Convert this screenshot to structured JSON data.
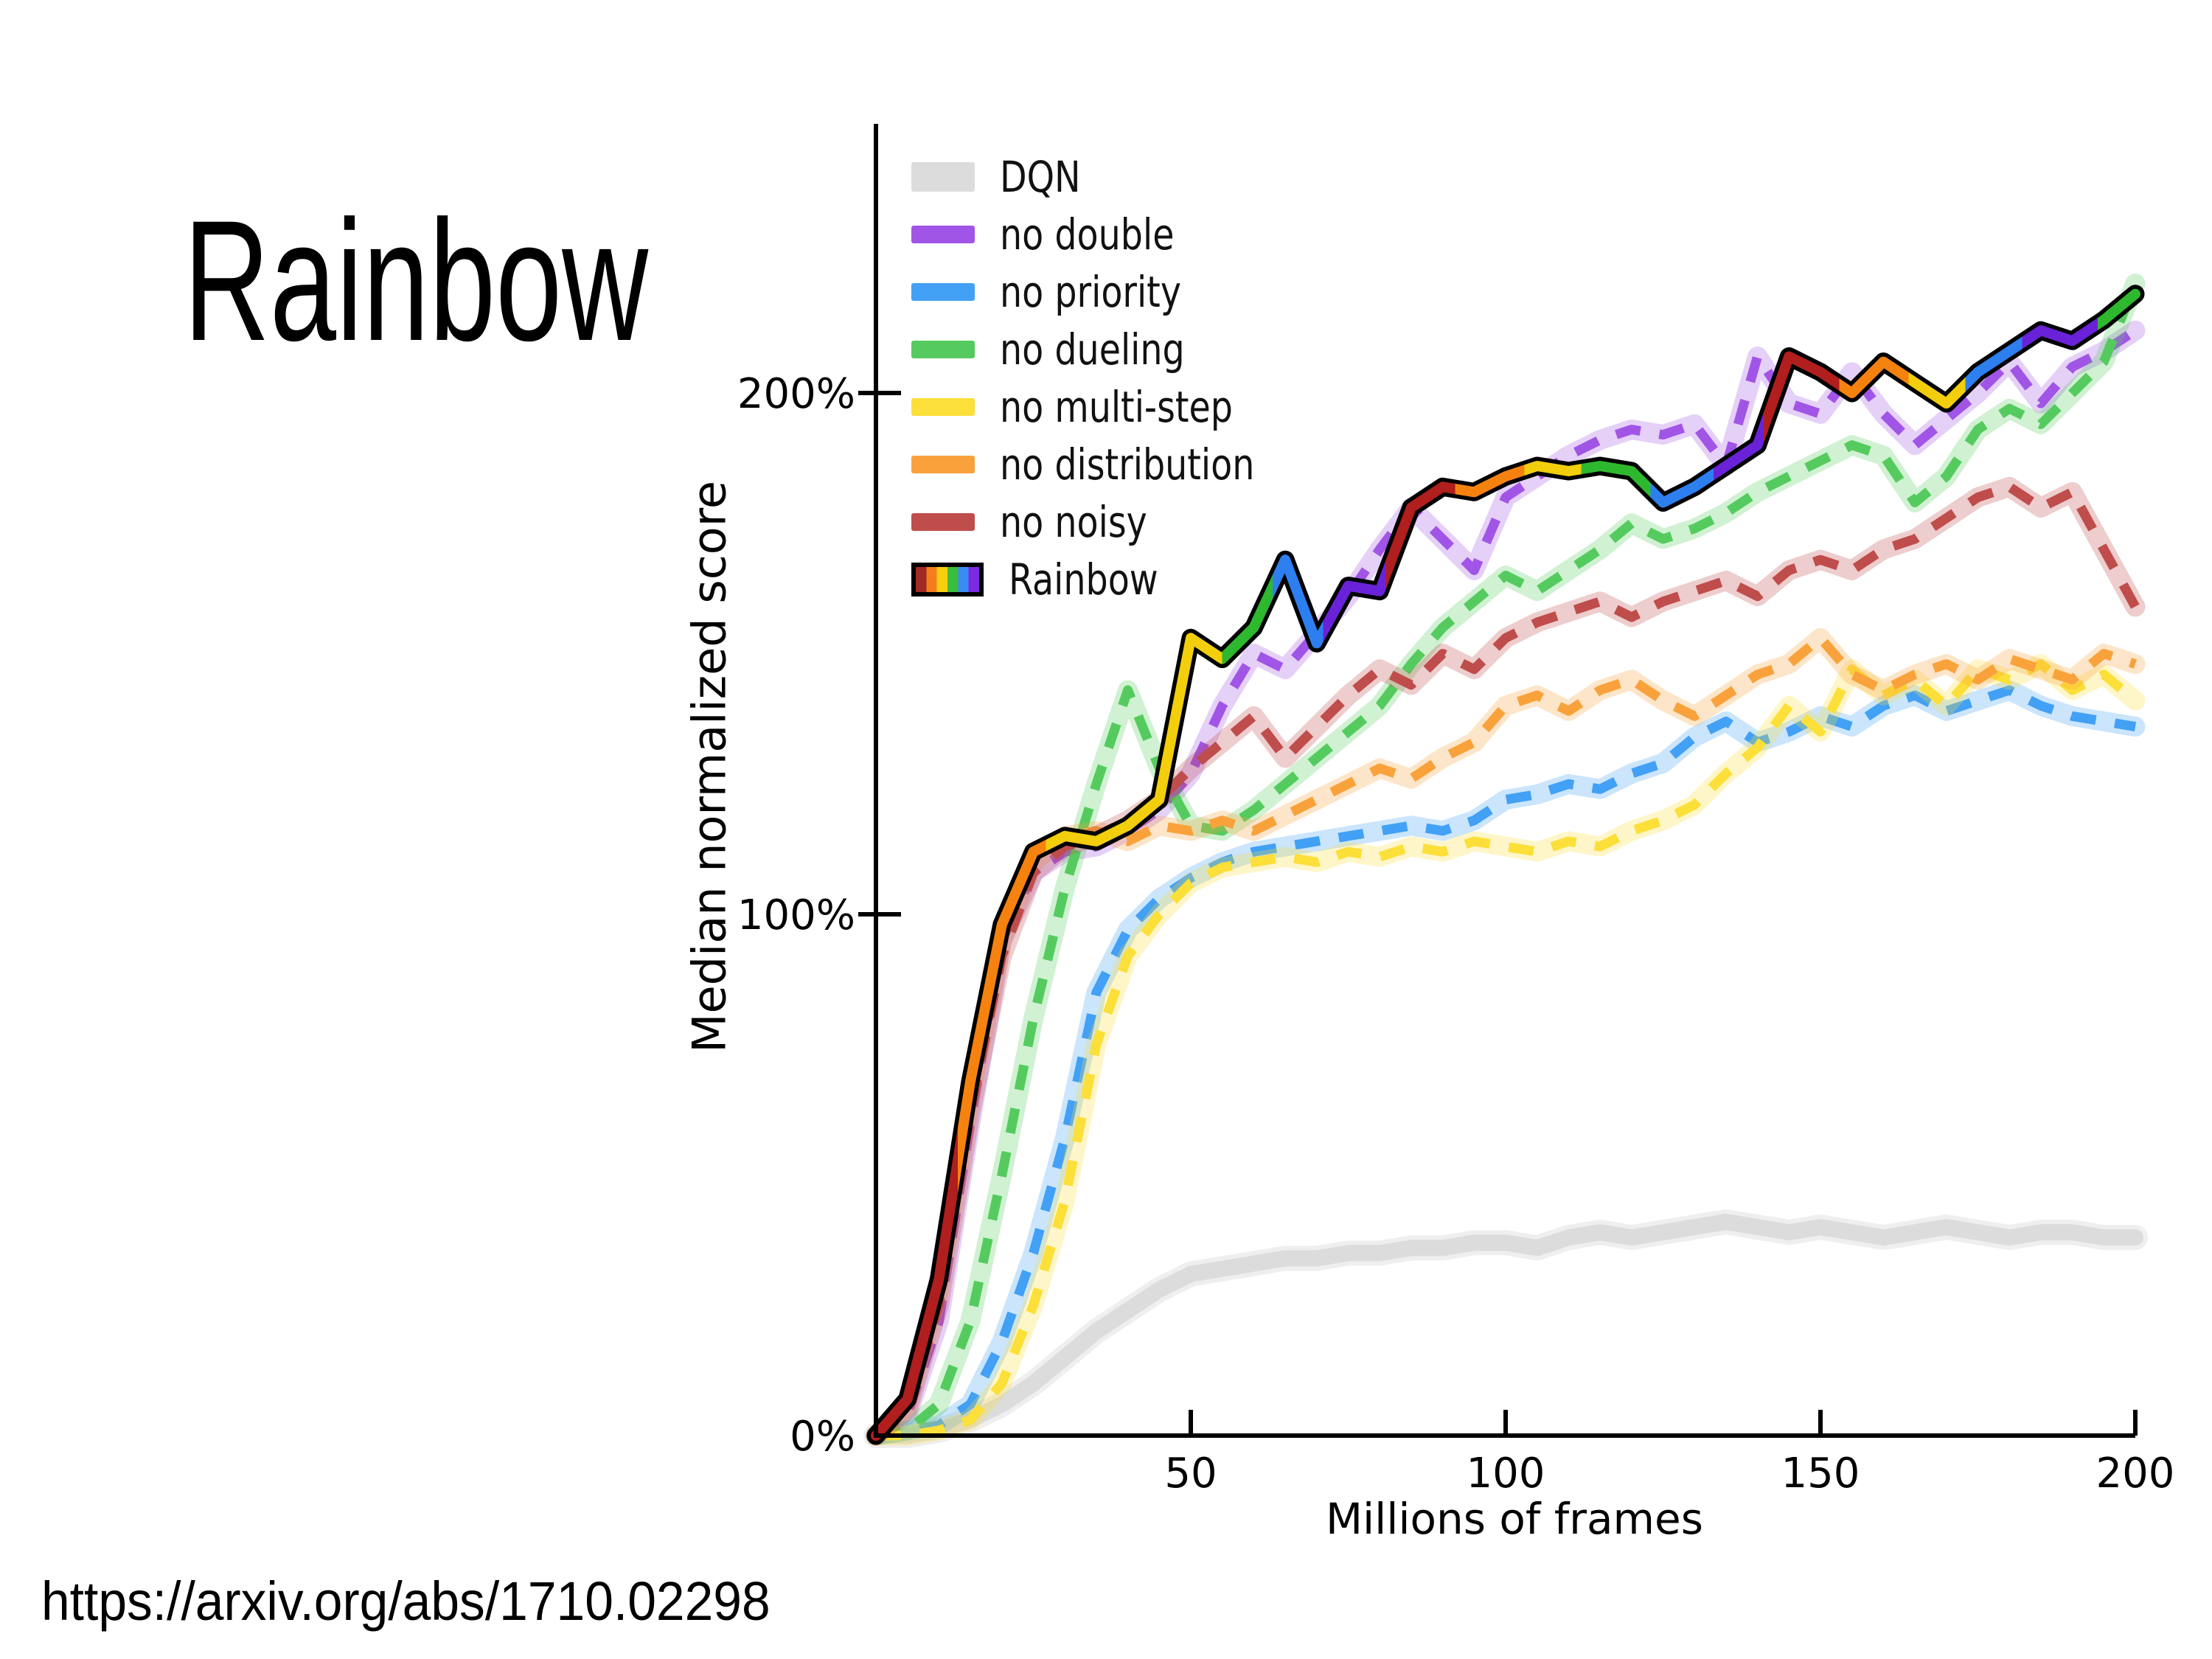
{
  "slide": {
    "title": "Rainbow",
    "url": "https://arxiv.org/abs/1710.02298",
    "background": "#ffffff"
  },
  "chart_data": {
    "type": "line",
    "title": "",
    "xlabel": "Millions of frames",
    "ylabel": "Median normalized score",
    "xlim": [
      0,
      200
    ],
    "ylim": [
      0,
      251
    ],
    "grid": false,
    "legend_position": "top-left",
    "axis_color": "#000000",
    "x_tick_labels": [
      "50",
      "100",
      "150",
      "200"
    ],
    "x_tick_values": [
      50,
      100,
      150,
      200
    ],
    "y_tick_labels": [
      "0%",
      "100%",
      "200%"
    ],
    "y_tick_values": [
      0,
      100,
      200
    ],
    "x": [
      0,
      5,
      10,
      15,
      20,
      25,
      30,
      35,
      40,
      45,
      50,
      55,
      60,
      65,
      70,
      75,
      80,
      85,
      90,
      95,
      100,
      105,
      110,
      115,
      120,
      125,
      130,
      135,
      140,
      145,
      150,
      155,
      160,
      165,
      170,
      175,
      180,
      185,
      190,
      195,
      200
    ],
    "series": [
      {
        "name": "DQN",
        "label": "DQN",
        "color": "#dcdcdc",
        "style": "thick",
        "values": [
          0,
          0,
          1,
          3,
          6,
          10,
          15,
          20,
          24,
          28,
          31,
          32,
          33,
          34,
          34,
          35,
          35,
          36,
          36,
          37,
          37,
          36,
          38,
          39,
          38,
          39,
          40,
          41,
          40,
          39,
          40,
          39,
          38,
          39,
          40,
          39,
          38,
          39,
          39,
          38,
          38
        ]
      },
      {
        "name": "no-double",
        "label": "no double",
        "color": "#a155e6",
        "style": "dashed",
        "values": [
          0,
          4,
          22,
          60,
          95,
          108,
          112,
          113,
          116,
          120,
          127,
          140,
          150,
          147,
          154,
          161,
          170,
          178,
          172,
          166,
          180,
          184,
          188,
          191,
          193,
          192,
          194,
          186,
          207,
          198,
          196,
          204,
          196,
          190,
          195,
          200,
          206,
          198,
          205,
          208,
          212
        ]
      },
      {
        "name": "no-priority",
        "label": "no priority",
        "color": "#42a0f5",
        "style": "dashed",
        "values": [
          0,
          1,
          2,
          6,
          18,
          35,
          57,
          85,
          97,
          103,
          107,
          110,
          112,
          113,
          114,
          115,
          116,
          117,
          116,
          118,
          122,
          123,
          125,
          124,
          127,
          129,
          134,
          137,
          133,
          135,
          138,
          136,
          140,
          142,
          139,
          141,
          143,
          140,
          138,
          137,
          136
        ]
      },
      {
        "name": "no-dueling",
        "label": "no dueling",
        "color": "#55cb5f",
        "style": "dashed",
        "values": [
          0,
          1,
          6,
          22,
          50,
          80,
          105,
          125,
          143,
          128,
          117,
          116,
          120,
          125,
          130,
          135,
          140,
          148,
          155,
          160,
          165,
          162,
          166,
          170,
          175,
          172,
          174,
          177,
          181,
          184,
          187,
          190,
          188,
          179,
          184,
          193,
          197,
          194,
          200,
          206,
          221
        ]
      },
      {
        "name": "no-multi-step",
        "label": "no multi-step",
        "color": "#fcdf38",
        "style": "dashed",
        "values": [
          0,
          0,
          1,
          3,
          10,
          25,
          45,
          75,
          92,
          100,
          106,
          109,
          110,
          111,
          110,
          112,
          111,
          113,
          112,
          114,
          113,
          112,
          114,
          113,
          116,
          118,
          121,
          127,
          132,
          140,
          135,
          147,
          142,
          145,
          140,
          147,
          145,
          148,
          143,
          146,
          141
        ]
      },
      {
        "name": "no-distribution",
        "label": "no distribution",
        "color": "#f9a23c",
        "style": "dashed",
        "values": [
          0,
          6,
          28,
          65,
          95,
          110,
          115,
          116,
          114,
          117,
          116,
          118,
          116,
          119,
          122,
          125,
          128,
          126,
          130,
          133,
          140,
          142,
          139,
          143,
          145,
          141,
          138,
          142,
          146,
          148,
          153,
          146,
          143,
          146,
          148,
          145,
          149,
          147,
          145,
          150,
          148
        ]
      },
      {
        "name": "no-noisy",
        "label": "no noisy",
        "color": "#bf4d4b",
        "style": "dashed",
        "values": [
          0,
          5,
          25,
          62,
          92,
          108,
          113,
          115,
          118,
          122,
          128,
          133,
          138,
          130,
          136,
          142,
          147,
          144,
          150,
          147,
          153,
          156,
          158,
          160,
          157,
          160,
          162,
          164,
          161,
          166,
          168,
          166,
          170,
          172,
          176,
          180,
          182,
          178,
          181,
          170,
          159
        ]
      },
      {
        "name": "rainbow",
        "label": "Rainbow",
        "color": "rainbow",
        "style": "rainbow",
        "values": [
          0,
          7,
          30,
          68,
          98,
          112,
          115,
          114,
          117,
          122,
          153,
          149,
          155,
          168,
          152,
          163,
          162,
          178,
          182,
          181,
          184,
          186,
          185,
          186,
          185,
          179,
          182,
          186,
          190,
          207,
          204,
          200,
          206,
          202,
          198,
          204,
          208,
          212,
          210,
          214,
          219
        ]
      }
    ],
    "rainbow_swatch_colors": [
      "#9e2b25",
      "#f57d20",
      "#f7cf0e",
      "#3dbd3d",
      "#3b8bf7",
      "#7a2be0"
    ],
    "rainbow_line_segments": [
      {
        "from": 0.0,
        "to": 0.065,
        "color": "#b01e1e"
      },
      {
        "from": 0.065,
        "to": 0.135,
        "color": "#f5820f"
      },
      {
        "from": 0.135,
        "to": 0.275,
        "color": "#f2ce0c"
      },
      {
        "from": 0.275,
        "to": 0.315,
        "color": "#2eb82e"
      },
      {
        "from": 0.315,
        "to": 0.355,
        "color": "#2d7ff0"
      },
      {
        "from": 0.355,
        "to": 0.405,
        "color": "#6a22d8"
      },
      {
        "from": 0.405,
        "to": 0.46,
        "color": "#b01e1e"
      },
      {
        "from": 0.46,
        "to": 0.515,
        "color": "#f5820f"
      },
      {
        "from": 0.515,
        "to": 0.56,
        "color": "#f2ce0c"
      },
      {
        "from": 0.56,
        "to": 0.615,
        "color": "#2eb82e"
      },
      {
        "from": 0.615,
        "to": 0.665,
        "color": "#2d7ff0"
      },
      {
        "from": 0.665,
        "to": 0.705,
        "color": "#6a22d8"
      },
      {
        "from": 0.705,
        "to": 0.765,
        "color": "#b01e1e"
      },
      {
        "from": 0.765,
        "to": 0.82,
        "color": "#f5820f"
      },
      {
        "from": 0.82,
        "to": 0.865,
        "color": "#f2ce0c"
      },
      {
        "from": 0.865,
        "to": 0.91,
        "color": "#2d7ff0"
      },
      {
        "from": 0.91,
        "to": 0.97,
        "color": "#6a22d8"
      },
      {
        "from": 0.97,
        "to": 1.0,
        "color": "#2eb82e"
      }
    ]
  }
}
